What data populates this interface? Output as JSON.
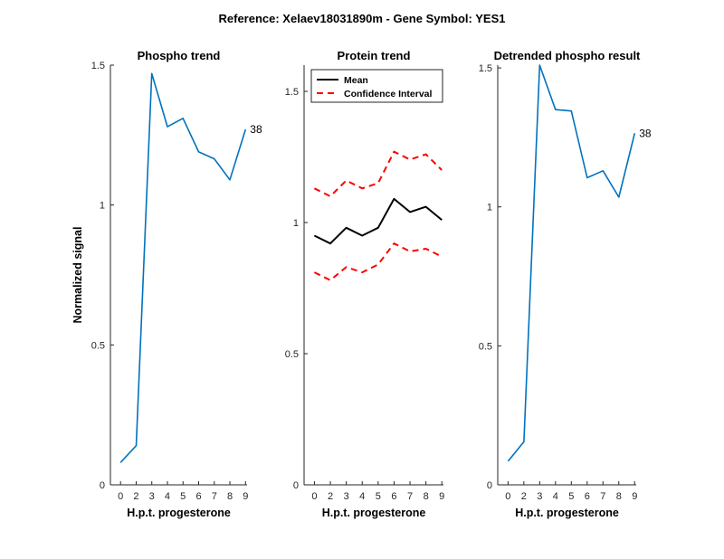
{
  "suptitle": "Reference:  Xelaev18031890m - Gene Symbol:  YES1",
  "colors": {
    "phospho": "#0072BD",
    "mean": "#000000",
    "ci": "#FF0000"
  },
  "chart_data": [
    {
      "type": "line",
      "title": "Phospho trend",
      "xlabel": "H.p.t. progesterone",
      "ylabel": "Normalized signal",
      "xticks": [
        "0",
        "2",
        "3",
        "4",
        "5",
        "6",
        "7",
        "8",
        "9"
      ],
      "yticks": [
        "0",
        "0.5",
        "1",
        "1.5"
      ],
      "ylim": [
        0,
        1.5
      ],
      "series": [
        {
          "values": [
            0.08,
            0.14,
            1.47,
            1.28,
            1.31,
            1.19,
            1.165,
            1.09,
            1.27
          ]
        }
      ],
      "end_label": "38"
    },
    {
      "type": "line",
      "title": "Protein trend",
      "xlabel": "H.p.t. progesterone",
      "ylabel": "",
      "xticks": [
        "0",
        "2",
        "3",
        "4",
        "5",
        "6",
        "7",
        "8",
        "9"
      ],
      "yticks": [
        "0",
        "0.5",
        "1",
        "1.5"
      ],
      "ylim": [
        0,
        1.6
      ],
      "legend_position": "top-left",
      "series": [
        {
          "name": "Mean",
          "style": "solid",
          "values": [
            0.95,
            0.92,
            0.98,
            0.95,
            0.98,
            1.09,
            1.04,
            1.06,
            1.01
          ]
        },
        {
          "name": "Confidence Interval",
          "style": "dashed",
          "values": [
            1.13,
            1.1,
            1.16,
            1.13,
            1.15,
            1.27,
            1.24,
            1.26,
            1.2
          ]
        },
        {
          "style": "dashed",
          "values": [
            0.81,
            0.78,
            0.83,
            0.81,
            0.84,
            0.92,
            0.89,
            0.9,
            0.87
          ]
        }
      ]
    },
    {
      "type": "line",
      "title": "Detrended phospho result",
      "xlabel": "H.p.t. progesterone",
      "ylabel": "",
      "xticks": [
        "0",
        "2",
        "3",
        "4",
        "5",
        "6",
        "7",
        "8",
        "9"
      ],
      "yticks": [
        "0",
        "0.5",
        "1",
        "1.5"
      ],
      "ylim": [
        0,
        1.51
      ],
      "series": [
        {
          "values": [
            0.085,
            0.155,
            1.51,
            1.35,
            1.345,
            1.105,
            1.13,
            1.035,
            1.265
          ]
        }
      ],
      "end_label": "38"
    }
  ]
}
